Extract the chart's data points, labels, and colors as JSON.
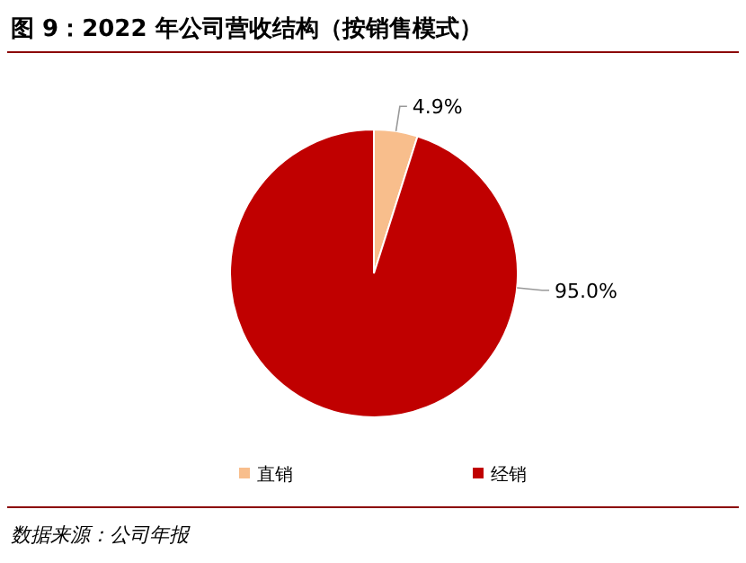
{
  "chart_data": {
    "type": "pie",
    "title": "图 9：2022 年公司营收结构（按销售模式）",
    "categories": [
      "直销",
      "经销"
    ],
    "values": [
      4.9,
      95.0
    ],
    "colors": [
      "#f8be8c",
      "#c00000"
    ],
    "value_labels": [
      "4.9%",
      "95.0%"
    ],
    "legend": "bottom",
    "annotations": [
      "数据来源：公司年报"
    ]
  }
}
